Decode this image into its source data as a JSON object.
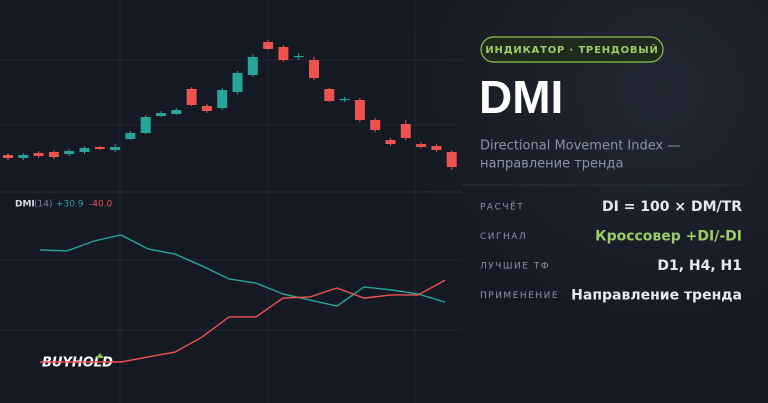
{
  "candles": {
    "up_color": "#26a69a",
    "down_color": "#ef5350",
    "items": [
      {
        "open": 45,
        "close": 42,
        "high": 47,
        "low": 40
      },
      {
        "open": 42,
        "close": 45,
        "high": 47,
        "low": 40
      },
      {
        "open": 47,
        "close": 44,
        "high": 49,
        "low": 42
      },
      {
        "open": 48,
        "close": 43,
        "high": 50,
        "low": 41
      },
      {
        "open": 46,
        "close": 49,
        "high": 51,
        "low": 44
      },
      {
        "open": 48,
        "close": 52,
        "high": 54,
        "low": 46
      },
      {
        "open": 53,
        "close": 51,
        "high": 54,
        "low": 50
      },
      {
        "open": 50,
        "close": 53,
        "high": 56,
        "low": 48
      },
      {
        "open": 61,
        "close": 67,
        "high": 69,
        "low": 60
      },
      {
        "open": 67,
        "close": 83,
        "high": 85,
        "low": 66
      },
      {
        "open": 84,
        "close": 87,
        "high": 89,
        "low": 83
      },
      {
        "open": 86,
        "close": 90,
        "high": 92,
        "low": 85
      },
      {
        "open": 111,
        "close": 95,
        "high": 113,
        "low": 94
      },
      {
        "open": 94,
        "close": 89,
        "high": 96,
        "low": 87
      },
      {
        "open": 92,
        "close": 110,
        "high": 112,
        "low": 90
      },
      {
        "open": 108,
        "close": 127,
        "high": 129,
        "low": 106
      },
      {
        "open": 125,
        "close": 143,
        "high": 146,
        "low": 123
      },
      {
        "open": 158,
        "close": 151,
        "high": 160,
        "low": 150
      },
      {
        "open": 153,
        "close": 140,
        "high": 155,
        "low": 138
      },
      {
        "open": 143,
        "close": 144,
        "high": 147,
        "low": 140
      },
      {
        "open": 140,
        "close": 122,
        "high": 143,
        "low": 120
      },
      {
        "open": 111,
        "close": 99,
        "high": 112,
        "low": 98
      },
      {
        "open": 100,
        "close": 101,
        "high": 103,
        "low": 98
      },
      {
        "open": 100,
        "close": 80,
        "high": 102,
        "low": 78
      },
      {
        "open": 80,
        "close": 70,
        "high": 82,
        "low": 68
      },
      {
        "open": 60,
        "close": 56,
        "high": 62,
        "low": 54
      },
      {
        "open": 76,
        "close": 62,
        "high": 80,
        "low": 60
      },
      {
        "open": 56,
        "close": 53,
        "high": 58,
        "low": 52
      },
      {
        "open": 54,
        "close": 50,
        "high": 56,
        "low": 48
      },
      {
        "open": 48,
        "close": 33,
        "high": 50,
        "low": 30
      }
    ]
  },
  "indicator": {
    "name": "DMI",
    "period": "(14)",
    "series": [
      {
        "name": "+DI",
        "color": "#26a69a",
        "value_label": "+30.9",
        "values": [
          52.5,
          52.1,
          56.2,
          58.7,
          52.9,
          50.8,
          45.9,
          40.5,
          38.8,
          34.3,
          31.8,
          29.3,
          37.2,
          36.0,
          34.3,
          30.9
        ]
      },
      {
        "name": "-DI",
        "color": "#ef5350",
        "value_label": "-40.0",
        "values": [
          6.2,
          6.2,
          6.2,
          6.2,
          8.3,
          10.3,
          16.5,
          24.8,
          24.8,
          32.6,
          33.1,
          36.8,
          32.6,
          33.9,
          33.9,
          40.0
        ]
      }
    ]
  },
  "logo": "BUYHOLD",
  "panel": {
    "badge": "ИНДИКАТОР · ТРЕНДОВЫЙ",
    "title": "DMI",
    "subtitle": [
      "Directional Movement Index —",
      "направление тренда"
    ],
    "rows": [
      {
        "label": "РАСЧЁТ",
        "value": "DI = 100 × DM/TR"
      },
      {
        "label": "СИГНАЛ",
        "value": "Кроссовер +DI/-DI",
        "accent": true
      },
      {
        "label": "ЛУЧШИЕ ТФ",
        "value": "D1, H4, H1"
      },
      {
        "label": "ПРИМЕНЕНИЕ",
        "value": "Направление тренда"
      }
    ]
  }
}
